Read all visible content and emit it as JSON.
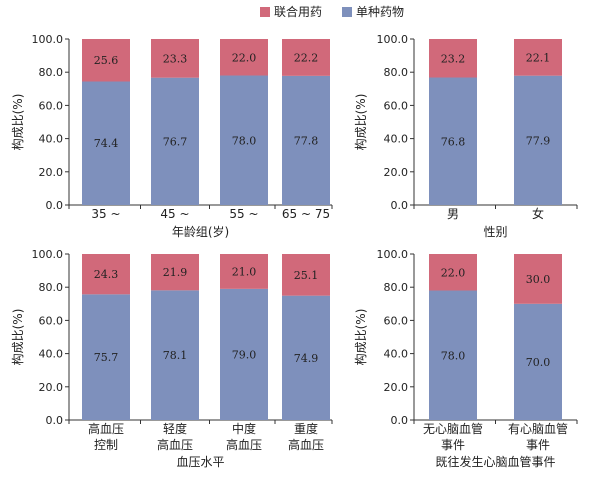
{
  "legend": [
    {
      "name": "联合用药",
      "color": "#D1697A"
    },
    {
      "name": "单种药物",
      "color": "#7E90BC"
    }
  ],
  "chart_data": [
    {
      "type": "bar",
      "stacked": true,
      "ylabel": "构成比(%)",
      "xlabel": "年龄组(岁)",
      "ylim": [
        0,
        100
      ],
      "yticks": [
        "0.0",
        "20.0",
        "40.0",
        "60.0",
        "80.0",
        "100.0"
      ],
      "categories": [
        [
          "35 ~"
        ],
        [
          "45 ~"
        ],
        [
          "55 ~"
        ],
        [
          "65 ~ 75"
        ]
      ],
      "series": [
        {
          "name": "单种药物",
          "values": [
            74.4,
            76.7,
            78.0,
            77.8
          ],
          "labels": [
            "74.4",
            "76.7",
            "78.0",
            "77.8"
          ]
        },
        {
          "name": "联合用药",
          "values": [
            25.6,
            23.3,
            22.0,
            22.2
          ],
          "labels": [
            "25.6",
            "23.3",
            "22.0",
            "22.2"
          ]
        }
      ]
    },
    {
      "type": "bar",
      "stacked": true,
      "ylabel": "构成比(%)",
      "xlabel": "性别",
      "ylim": [
        0,
        100
      ],
      "yticks": [
        "0.0",
        "20.0",
        "40.0",
        "60.0",
        "80.0",
        "100.0"
      ],
      "categories": [
        [
          "男"
        ],
        [
          "女"
        ]
      ],
      "series": [
        {
          "name": "单种药物",
          "values": [
            76.8,
            77.9
          ],
          "labels": [
            "76.8",
            "77.9"
          ]
        },
        {
          "name": "联合用药",
          "values": [
            23.2,
            22.1
          ],
          "labels": [
            "23.2",
            "22.1"
          ]
        }
      ]
    },
    {
      "type": "bar",
      "stacked": true,
      "ylabel": "构成比(%)",
      "xlabel": "血压水平",
      "ylim": [
        0,
        100
      ],
      "yticks": [
        "0.0",
        "20.0",
        "40.0",
        "60.0",
        "80.0",
        "100.0"
      ],
      "categories": [
        [
          "高血压",
          "控制"
        ],
        [
          "轻度",
          "高血压"
        ],
        [
          "中度",
          "高血压"
        ],
        [
          "重度",
          "高血压"
        ]
      ],
      "series": [
        {
          "name": "单种药物",
          "values": [
            75.7,
            78.1,
            79.0,
            74.9
          ],
          "labels": [
            "75.7",
            "78.1",
            "79.0",
            "74.9"
          ]
        },
        {
          "name": "联合用药",
          "values": [
            24.3,
            21.9,
            21.0,
            25.1
          ],
          "labels": [
            "24.3",
            "21.9",
            "21.0",
            "25.1"
          ]
        }
      ]
    },
    {
      "type": "bar",
      "stacked": true,
      "ylabel": "构成比(%)",
      "xlabel": "既往发生心脑血管事件",
      "ylim": [
        0,
        100
      ],
      "yticks": [
        "0.0",
        "20.0",
        "40.0",
        "60.0",
        "80.0",
        "100.0"
      ],
      "categories": [
        [
          "无心脑血管",
          "事件"
        ],
        [
          "有心脑血管",
          "事件"
        ]
      ],
      "series": [
        {
          "name": "单种药物",
          "values": [
            78.0,
            70.0
          ],
          "labels": [
            "78.0",
            "70.0"
          ]
        },
        {
          "name": "联合用药",
          "values": [
            22.0,
            30.0
          ],
          "labels": [
            "22.0",
            "30.0"
          ]
        }
      ]
    }
  ]
}
